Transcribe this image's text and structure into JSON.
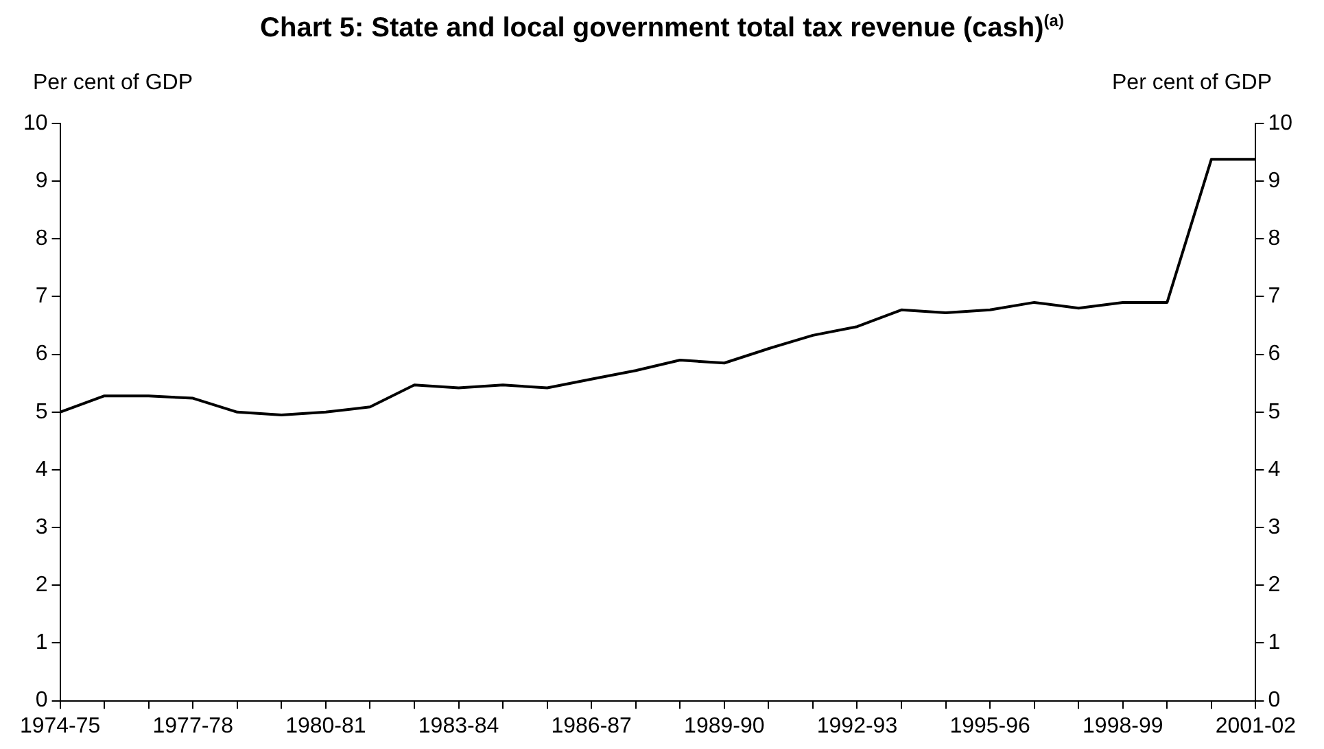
{
  "chart_data": {
    "type": "line",
    "title": "Chart 5:  State and local government total tax revenue (cash)$^{(a)}$",
    "ylabel": "Per cent of GDP",
    "y2label": "Per cent of GDP",
    "categories": [
      "1974-75",
      null,
      null,
      "1977-78",
      null,
      null,
      "1980-81",
      null,
      null,
      "1983-84",
      null,
      null,
      "1986-87",
      null,
      null,
      "1989-90",
      null,
      null,
      "1992-93",
      null,
      null,
      "1995-96",
      null,
      null,
      "1998-99",
      null,
      null,
      "2001-02"
    ],
    "series": [
      {
        "color": "#000000",
        "values": [
          5.0,
          5.28,
          5.28,
          5.24,
          5.0,
          4.95,
          5.0,
          5.09,
          5.47,
          5.42,
          5.47,
          5.42,
          5.57,
          5.72,
          5.9,
          5.85,
          6.1,
          6.33,
          6.48,
          6.77,
          6.72,
          6.77,
          6.9,
          6.8,
          6.9,
          6.9,
          9.38,
          9.38
        ]
      }
    ],
    "ylim": [
      0,
      10
    ],
    "yticks": [
      0,
      1,
      2,
      3,
      4,
      5,
      6,
      7,
      8,
      9,
      10
    ],
    "y2lim": [
      0,
      10
    ],
    "y2ticks": [
      0,
      1,
      2,
      3,
      4,
      5,
      6,
      7,
      8,
      9,
      10
    ],
    "grid": false,
    "legend": false,
    "marker": "none",
    "line_style": "solid"
  }
}
